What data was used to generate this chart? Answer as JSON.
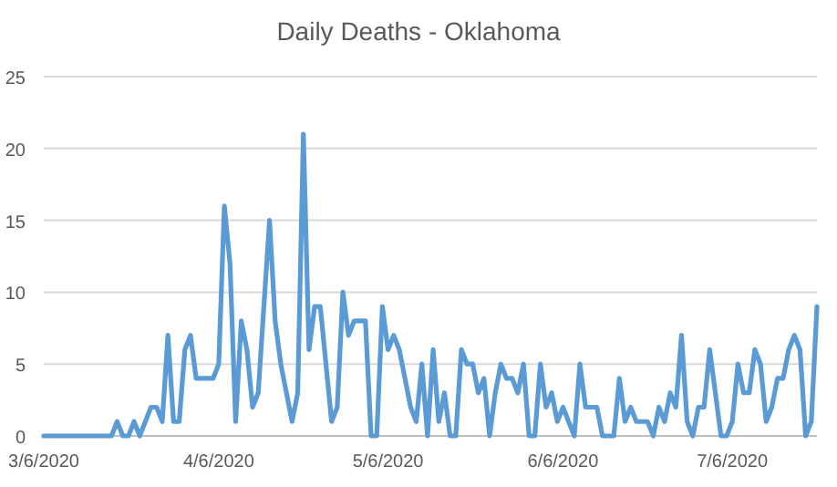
{
  "chart_data": {
    "type": "line",
    "title": "Daily Deaths - Oklahoma",
    "x": [
      "2020-03-06",
      "2020-03-07",
      "2020-03-08",
      "2020-03-09",
      "2020-03-10",
      "2020-03-11",
      "2020-03-12",
      "2020-03-13",
      "2020-03-14",
      "2020-03-15",
      "2020-03-16",
      "2020-03-17",
      "2020-03-18",
      "2020-03-19",
      "2020-03-20",
      "2020-03-21",
      "2020-03-22",
      "2020-03-23",
      "2020-03-24",
      "2020-03-25",
      "2020-03-26",
      "2020-03-27",
      "2020-03-28",
      "2020-03-29",
      "2020-03-30",
      "2020-03-31",
      "2020-04-01",
      "2020-04-02",
      "2020-04-03",
      "2020-04-04",
      "2020-04-05",
      "2020-04-06",
      "2020-04-07",
      "2020-04-08",
      "2020-04-09",
      "2020-04-10",
      "2020-04-11",
      "2020-04-12",
      "2020-04-13",
      "2020-04-14",
      "2020-04-15",
      "2020-04-16",
      "2020-04-17",
      "2020-04-18",
      "2020-04-19",
      "2020-04-20",
      "2020-04-21",
      "2020-04-22",
      "2020-04-23",
      "2020-04-24",
      "2020-04-25",
      "2020-04-26",
      "2020-04-27",
      "2020-04-28",
      "2020-04-29",
      "2020-04-30",
      "2020-05-01",
      "2020-05-02",
      "2020-05-03",
      "2020-05-04",
      "2020-05-05",
      "2020-05-06",
      "2020-05-07",
      "2020-05-08",
      "2020-05-09",
      "2020-05-10",
      "2020-05-11",
      "2020-05-12",
      "2020-05-13",
      "2020-05-14",
      "2020-05-15",
      "2020-05-16",
      "2020-05-17",
      "2020-05-18",
      "2020-05-19",
      "2020-05-20",
      "2020-05-21",
      "2020-05-22",
      "2020-05-23",
      "2020-05-24",
      "2020-05-25",
      "2020-05-26",
      "2020-05-27",
      "2020-05-28",
      "2020-05-29",
      "2020-05-30",
      "2020-05-31",
      "2020-06-01",
      "2020-06-02",
      "2020-06-03",
      "2020-06-04",
      "2020-06-05",
      "2020-06-06",
      "2020-06-07",
      "2020-06-08",
      "2020-06-09",
      "2020-06-10",
      "2020-06-11",
      "2020-06-12",
      "2020-06-13",
      "2020-06-14",
      "2020-06-15",
      "2020-06-16",
      "2020-06-17",
      "2020-06-18",
      "2020-06-19",
      "2020-06-20",
      "2020-06-21",
      "2020-06-22",
      "2020-06-23",
      "2020-06-24",
      "2020-06-25",
      "2020-06-26",
      "2020-06-27",
      "2020-06-28",
      "2020-06-29",
      "2020-06-30",
      "2020-07-01",
      "2020-07-02",
      "2020-07-03",
      "2020-07-04",
      "2020-07-05",
      "2020-07-06",
      "2020-07-07",
      "2020-07-08",
      "2020-07-09",
      "2020-07-10",
      "2020-07-11",
      "2020-07-12",
      "2020-07-13",
      "2020-07-14",
      "2020-07-15",
      "2020-07-16",
      "2020-07-17",
      "2020-07-18",
      "2020-07-19",
      "2020-07-20",
      "2020-07-21"
    ],
    "series": [
      {
        "color": "#5b9bd5",
        "values": [
          0,
          0,
          0,
          0,
          0,
          0,
          0,
          0,
          0,
          0,
          0,
          0,
          0,
          1,
          0,
          0,
          1,
          0,
          1,
          2,
          2,
          1,
          7,
          1,
          1,
          6,
          7,
          4,
          4,
          4,
          4,
          5,
          16,
          12,
          1,
          8,
          6,
          2,
          3,
          9,
          15,
          8,
          5,
          3,
          1,
          3,
          21,
          6,
          9,
          9,
          5,
          1,
          2,
          10,
          7,
          8,
          8,
          8,
          0,
          0,
          9,
          6,
          7,
          6,
          4,
          2,
          1,
          5,
          0,
          6,
          1,
          3,
          0,
          0,
          6,
          5,
          5,
          3,
          4,
          0,
          3,
          5,
          4,
          4,
          3,
          5,
          0,
          0,
          5,
          2,
          3,
          1,
          2,
          1,
          0,
          5,
          2,
          2,
          2,
          0,
          0,
          0,
          4,
          1,
          2,
          1,
          1,
          1,
          0,
          2,
          1,
          3,
          2,
          7,
          1,
          0,
          2,
          2,
          6,
          3,
          0,
          0,
          1,
          5,
          3,
          3,
          6,
          5,
          1,
          2,
          4,
          4,
          6,
          7,
          6,
          0,
          1,
          9
        ]
      }
    ],
    "xlim": [
      "2020-03-06",
      "2020-07-21"
    ],
    "xticks": [
      {
        "value": "2020-03-06",
        "label": "3/6/2020"
      },
      {
        "value": "2020-04-06",
        "label": "4/6/2020"
      },
      {
        "value": "2020-05-06",
        "label": "5/6/2020"
      },
      {
        "value": "2020-06-06",
        "label": "6/6/2020"
      },
      {
        "value": "2020-07-06",
        "label": "7/6/2020"
      }
    ],
    "ylim": [
      0,
      25
    ],
    "yticks": [
      0,
      5,
      10,
      15,
      20,
      25
    ],
    "grid": "y",
    "marker": "none",
    "line_style": "solid"
  }
}
